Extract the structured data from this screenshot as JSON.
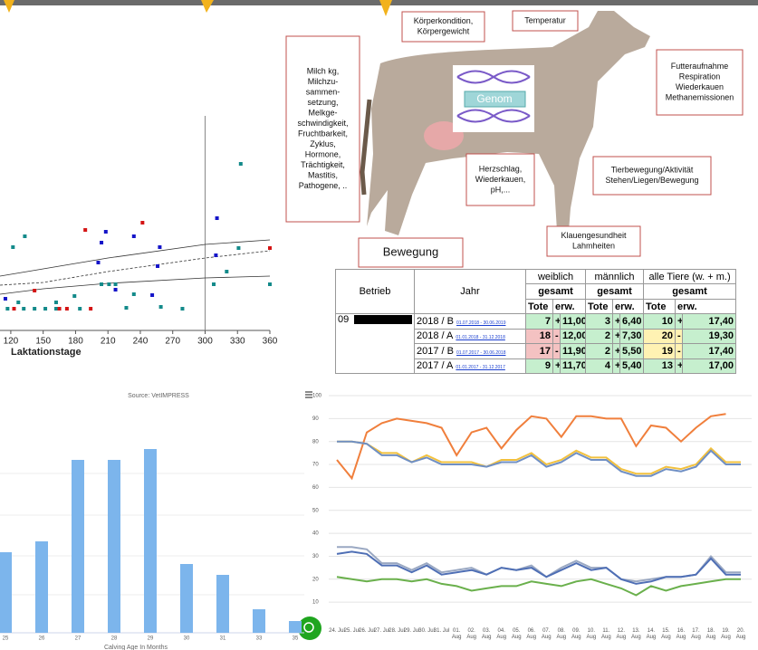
{
  "chart_data": [
    {
      "type": "scatter",
      "x_label": "Laktationstage",
      "xlim": [
        110,
        360
      ],
      "xticks": [
        120,
        150,
        180,
        210,
        240,
        270,
        300,
        330,
        360
      ],
      "ylim": [
        0,
        200
      ],
      "vline": 300,
      "series": [
        {
          "color": "#138a8a",
          "x": [
            333,
            122,
            133,
            117,
            132,
            142,
            152,
            162,
            127,
            162,
            179,
            204,
            211,
            217,
            227,
            234,
            259,
            279,
            308,
            320,
            331,
            360,
            184
          ],
          "values": [
            184,
            92,
            104,
            24,
            24,
            24,
            24,
            24,
            31,
            31,
            38,
            51,
            51,
            51,
            25,
            40,
            26,
            24,
            51,
            65,
            91,
            51,
            24
          ]
        },
        {
          "color": "#1414c8",
          "x": [
            311,
            204,
            208,
            234,
            258,
            256,
            201,
            217,
            251,
            115,
            310
          ],
          "values": [
            124,
            97,
            109,
            104,
            92,
            71,
            75,
            45,
            39,
            35,
            83
          ]
        },
        {
          "color": "#d41414",
          "x": [
            189,
            242,
            360,
            123,
            142,
            165,
            172,
            194
          ],
          "values": [
            111,
            119,
            91,
            24,
            44,
            24,
            24,
            24
          ]
        }
      ],
      "curves": [
        {
          "color": "#333333",
          "dashed": false,
          "x": [
            110,
            150,
            210,
            300,
            360
          ],
          "values": [
            60,
            68,
            80,
            95,
            100
          ]
        },
        {
          "color": "#333333",
          "dashed": false,
          "x": [
            110,
            150,
            210,
            300,
            360
          ],
          "values": [
            40,
            46,
            52,
            58,
            60
          ]
        },
        {
          "color": "#333333",
          "dashed": true,
          "x": [
            110,
            150,
            210,
            300,
            360
          ],
          "values": [
            50,
            53,
            65,
            80,
            88
          ]
        }
      ]
    },
    {
      "type": "bar",
      "title": "Source: VetIMPRESS",
      "x_label": "Calving Age In Months",
      "categories": [
        "25",
        "26",
        "27",
        "28",
        "29",
        "30",
        "31",
        "33",
        "35"
      ],
      "values": [
        89,
        101,
        191,
        191,
        203,
        76,
        64,
        26,
        13
      ],
      "color": "#7cb5ec",
      "ylim": [
        0,
        220
      ]
    },
    {
      "type": "line",
      "categories": [
        "24. Jul",
        "25. Jul",
        "26. Jul",
        "27. Jul",
        "28. Jul",
        "29. Jul",
        "30. Jul",
        "31. Jul",
        "01. Aug",
        "02. Aug",
        "03. Aug",
        "04. Aug",
        "05. Aug",
        "06. Aug",
        "07. Aug",
        "08. Aug",
        "09. Aug",
        "10. Aug",
        "11. Aug",
        "12. Aug",
        "13. Aug",
        "14. Aug",
        "15. Aug",
        "16. Aug",
        "17. Aug",
        "18. Aug",
        "19. Aug",
        "20. Aug"
      ],
      "ylim": [
        0,
        100
      ],
      "yticks": [
        10,
        20,
        30,
        40,
        50,
        60,
        70,
        80,
        90,
        100
      ],
      "grid": true,
      "series": [
        {
          "color": "#f07f3c",
          "values": [
            72,
            64,
            84,
            88,
            90,
            89,
            88,
            86,
            74,
            84,
            86,
            77,
            85,
            91,
            90,
            82,
            91,
            91,
            90,
            90,
            78,
            87,
            86,
            80,
            86,
            91,
            92,
            null
          ]
        },
        {
          "color": "#f2c13e",
          "values": [
            80,
            80,
            79,
            75,
            75,
            71,
            74,
            71,
            71,
            71,
            69,
            72,
            72,
            75,
            70,
            72,
            76,
            73,
            73,
            68,
            66,
            66,
            69,
            68,
            70,
            77,
            71,
            71
          ]
        },
        {
          "color": "#6f8fc4",
          "values": [
            80,
            80,
            79,
            74,
            74,
            71,
            73,
            70,
            70,
            70,
            69,
            71,
            71,
            74,
            69,
            71,
            75,
            72,
            72,
            67,
            65,
            65,
            68,
            67,
            69,
            76,
            70,
            70
          ]
        },
        {
          "color": "#9aa8c2",
          "values": [
            34,
            34,
            33,
            27,
            27,
            24,
            27,
            23,
            24,
            25,
            22,
            25,
            24,
            26,
            21,
            25,
            28,
            25,
            25,
            20,
            19,
            20,
            21,
            21,
            22,
            30,
            23,
            23
          ]
        },
        {
          "color": "#4f6fb5",
          "values": [
            31,
            32,
            31,
            26,
            26,
            23,
            26,
            22,
            23,
            24,
            22,
            25,
            24,
            25,
            21,
            24,
            27,
            24,
            25,
            20,
            18,
            19,
            21,
            21,
            22,
            29,
            22,
            22
          ]
        },
        {
          "color": "#6ab04c",
          "values": [
            21,
            20,
            19,
            20,
            20,
            19,
            20,
            18,
            17,
            15,
            16,
            17,
            17,
            19,
            18,
            17,
            19,
            20,
            18,
            16,
            13,
            17,
            15,
            17,
            18,
            19,
            20,
            20
          ]
        }
      ]
    }
  ],
  "diagram": {
    "genom": "Genom",
    "labels": [
      {
        "lines": [
          "Körperkondition,",
          "Körpergewicht"
        ]
      },
      {
        "lines": [
          "Temperatur"
        ]
      },
      {
        "lines": [
          "Milch kg,",
          "Milchzu-",
          "sammen-",
          "setzung,",
          "Melkge-",
          "schwindigkeit,",
          "Fruchtbarkeit,",
          "Zyklus,",
          "Hormone,",
          "Trächtigkeit,",
          "Mastitis,",
          "Pathogene, .."
        ]
      },
      {
        "lines": [
          "Futteraufnahme",
          "Respiration",
          "Wiederkauen",
          "Methanemissionen"
        ]
      },
      {
        "lines": [
          "Herzschlag,",
          "Wiederkauen,",
          "pH,..."
        ]
      },
      {
        "lines": [
          "Tierbewegung/Aktivität",
          "Stehen/Liegen/Bewegung"
        ]
      },
      {
        "lines": [
          "Klauengesundheit",
          "Lahmheiten"
        ]
      },
      {
        "lines": [
          "Bewegung"
        ]
      }
    ]
  },
  "table": {
    "betrieb_header": "Betrieb",
    "jahr_header": "Jahr",
    "groups": [
      "weiblich",
      "männlich",
      "alle Tiere (w. + m.)"
    ],
    "sub": [
      "gesamt",
      "gesamt",
      "gesamt"
    ],
    "cols": [
      "Tote",
      "erw.",
      "Tote",
      "erw.",
      "Tote",
      "erw."
    ],
    "betrieb": "09",
    "erw_color": "#c6efce",
    "rows": [
      {
        "jahr": "2018 / B",
        "period": "01.07.2018 - 30.06.2019",
        "cells": [
          7,
          "+",
          "11,00",
          3,
          "+",
          "6,40",
          10,
          "+",
          "17,40"
        ],
        "colors": [
          "#c6efce",
          "#c6efce",
          "#c6efce"
        ]
      },
      {
        "jahr": "2018 / A",
        "period": "01.01.2018 - 31.12.2018",
        "cells": [
          18,
          "-",
          "12,00",
          2,
          "+",
          "7,30",
          20,
          "-",
          "19,30"
        ],
        "colors": [
          "#f4c2c2",
          "#c6efce",
          "#fff2b3"
        ]
      },
      {
        "jahr": "2017 / B",
        "period": "01.07.2017 - 30.06.2018",
        "cells": [
          17,
          "-",
          "11,90",
          2,
          "+",
          "5,50",
          19,
          "-",
          "17,40"
        ],
        "colors": [
          "#f4c2c2",
          "#c6efce",
          "#fff2b3"
        ]
      },
      {
        "jahr": "2017 / A",
        "period": "01.01.2017 - 31.12.2017",
        "cells": [
          9,
          "+",
          "11,70",
          4,
          "+",
          "5,40",
          13,
          "+",
          "17,00"
        ],
        "colors": [
          "#c6efce",
          "#c6efce",
          "#c6efce"
        ]
      }
    ]
  }
}
